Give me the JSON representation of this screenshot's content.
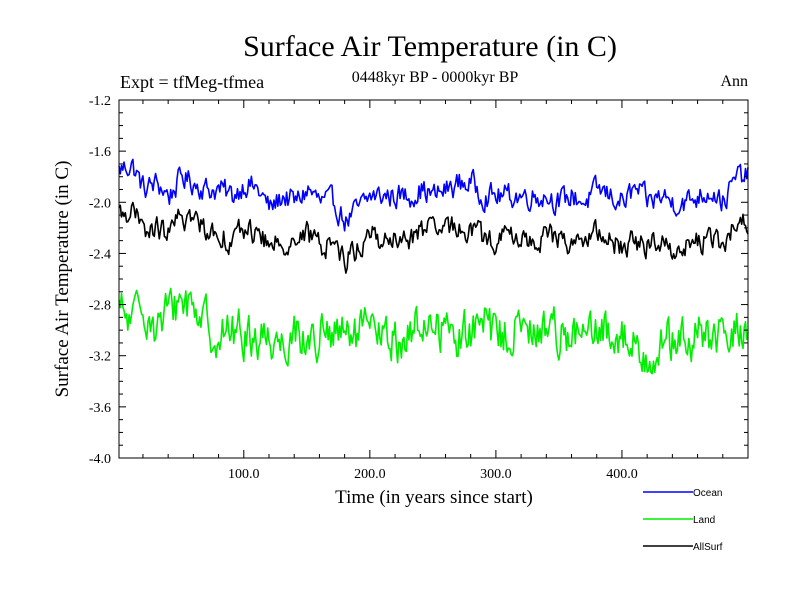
{
  "chart_data": {
    "type": "line",
    "title": "Surface Air Temperature (in C)",
    "subtitle": "0448kyr BP - 0000kyr BP",
    "left_label": "Expt = tfMeg-tfmea",
    "right_label": "Ann",
    "xlabel": "Time (in years since start)",
    "ylabel": "Surface Air Temperature (in C)",
    "xlim": [
      1,
      500
    ],
    "ylim": [
      -4.0,
      -1.2
    ],
    "x_ticks": [
      100,
      200,
      300,
      400
    ],
    "x_tick_labels": [
      "100.0",
      "200.0",
      "300.0",
      "400.0"
    ],
    "y_ticks": [
      -4.0,
      -3.6,
      -3.2,
      -2.8,
      -2.4,
      -2.0,
      -1.6,
      -1.2
    ],
    "y_tick_labels": [
      "-4.0",
      "-3.6",
      "-3.2",
      "-2.8",
      "-2.4",
      "-2.0",
      "-1.6",
      "-1.2"
    ],
    "grid": false,
    "legend_position": "bottom-right",
    "series": [
      {
        "name": "Ocean",
        "color": "#0000ff",
        "x_step": 10,
        "values": [
          -1.75,
          -1.7,
          -1.9,
          -1.85,
          -1.95,
          -1.8,
          -1.85,
          -1.9,
          -1.9,
          -1.95,
          -1.85,
          -1.9,
          -2.05,
          -1.95,
          -2.0,
          -1.9,
          -2.0,
          -2.0,
          -2.15,
          -2.05,
          -1.95,
          -1.95,
          -1.95,
          -1.95,
          -1.9,
          -1.95,
          -1.9,
          -1.85,
          -1.85,
          -1.95,
          -1.95,
          -1.95,
          -1.95,
          -1.95,
          -1.95,
          -2.0,
          -1.95,
          -2.0,
          -1.9,
          -1.95,
          -2.0,
          -1.9,
          -2.0,
          -1.95,
          -2.0,
          -2.0,
          -1.95,
          -1.9,
          -2.0,
          -1.8
        ]
      },
      {
        "name": "Land",
        "color": "#00ee00",
        "x_step": 10,
        "values": [
          -2.85,
          -2.95,
          -2.8,
          -3.0,
          -2.85,
          -2.75,
          -2.8,
          -2.95,
          -3.05,
          -3.0,
          -3.05,
          -3.05,
          -3.05,
          -3.1,
          -3.0,
          -3.1,
          -3.05,
          -3.05,
          -3.05,
          -3.05,
          -3.0,
          -3.05,
          -3.1,
          -3.05,
          -2.95,
          -2.95,
          -3.0,
          -3.05,
          -3.0,
          -2.95,
          -3.05,
          -3.0,
          -3.0,
          -3.05,
          -2.95,
          -3.0,
          -3.05,
          -3.05,
          -3.05,
          -3.0,
          -3.05,
          -3.15,
          -3.2,
          -3.1,
          -3.1,
          -3.1,
          -3.05,
          -3.05,
          -3.1,
          -3.0
        ]
      },
      {
        "name": "AllSurf",
        "color": "#000000",
        "x_step": 10,
        "values": [
          -2.1,
          -2.05,
          -2.25,
          -2.2,
          -2.25,
          -2.1,
          -2.15,
          -2.2,
          -2.25,
          -2.3,
          -2.2,
          -2.25,
          -2.35,
          -2.3,
          -2.3,
          -2.25,
          -2.35,
          -2.3,
          -2.45,
          -2.35,
          -2.25,
          -2.3,
          -2.3,
          -2.3,
          -2.2,
          -2.25,
          -2.2,
          -2.2,
          -2.2,
          -2.3,
          -2.3,
          -2.25,
          -2.3,
          -2.3,
          -2.25,
          -2.3,
          -2.3,
          -2.3,
          -2.25,
          -2.3,
          -2.35,
          -2.3,
          -2.35,
          -2.3,
          -2.35,
          -2.35,
          -2.3,
          -2.3,
          -2.35,
          -2.15
        ]
      }
    ]
  }
}
